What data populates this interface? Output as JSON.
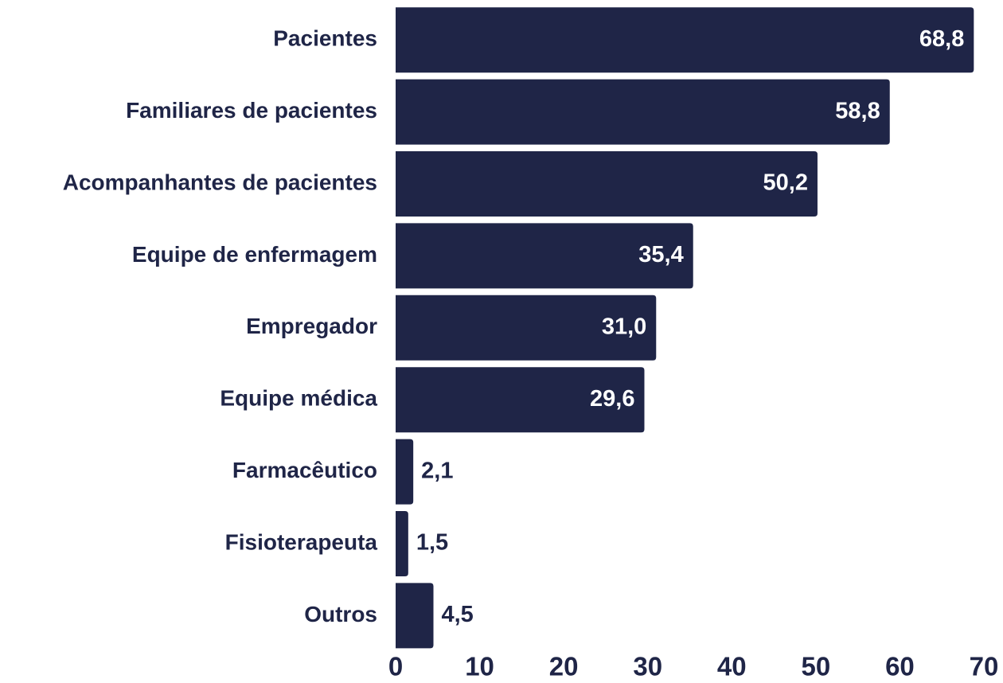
{
  "chart_data": {
    "type": "barh",
    "categories": [
      "Pacientes",
      "Familiares de pacientes",
      "Acompanhantes de pacientes",
      "Equipe de enfermagem",
      "Empregador",
      "Equipe médica",
      "Farmacêutico",
      "Fisioterapeuta",
      "Outros"
    ],
    "values": [
      68.8,
      58.8,
      50.2,
      35.4,
      31.0,
      29.6,
      2.1,
      1.5,
      4.5
    ],
    "value_labels": [
      "68,8",
      "58,8",
      "50,2",
      "35,4",
      "31,0",
      "29,6",
      "2,1",
      "1,5",
      "4,5"
    ],
    "color": "#1f2547",
    "xlim": [
      0,
      70
    ],
    "xticks": [
      0,
      10,
      20,
      30,
      40,
      50,
      60,
      70
    ],
    "grid": false
  }
}
